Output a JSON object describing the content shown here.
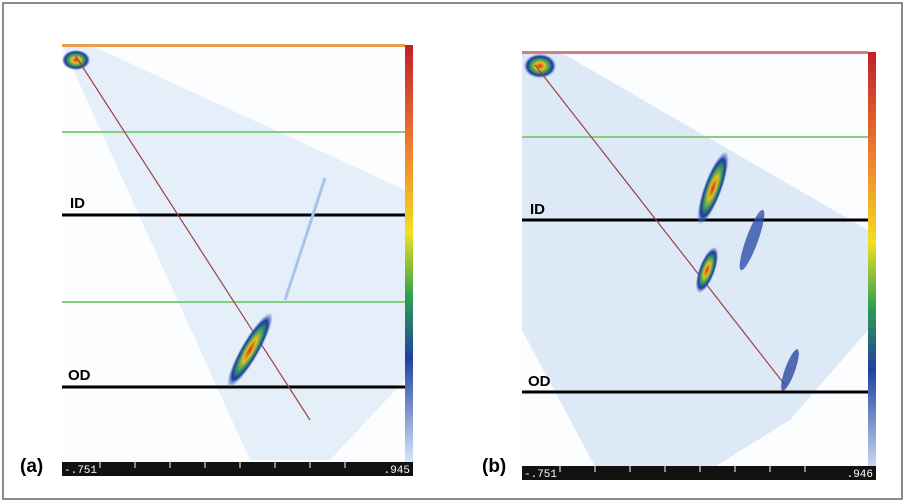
{
  "panels": [
    {
      "label": "(a)",
      "id_label": "ID",
      "od_label": "OD",
      "scale_min": "-.751",
      "scale_max": ".945"
    },
    {
      "label": "(b)",
      "id_label": "ID",
      "od_label": "OD",
      "scale_min": "-.751",
      "scale_max": ".946"
    }
  ]
}
